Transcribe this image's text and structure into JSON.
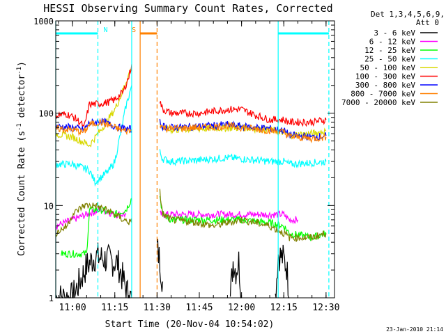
{
  "chart_data": {
    "type": "line",
    "title": "HESSI Observing Summary Count Rates, Corrected",
    "xlabel": "Start Time (20-Nov-04 10:54:02)",
    "ylabel": "Corrected Count Rate (s⁻¹ detector⁻¹)",
    "ylabel_main": "Corrected Count Rate (s",
    "ylabel_sup1": "-1",
    "ylabel_mid": " detector",
    "ylabel_sup2": "-1",
    "ylabel_end": ")",
    "footer": "23-Jan-2010 21:14",
    "y_scale": "log",
    "xlim": [
      "10:54:02",
      "12:33:00"
    ],
    "ylim": [
      1,
      1000
    ],
    "x_ticks": [
      "11:00",
      "11:15",
      "11:30",
      "11:45",
      "12:00",
      "12:15",
      "12:30"
    ],
    "y_ticks": [
      "1",
      "10",
      "100",
      "1000"
    ],
    "legend": {
      "header_line1": "Det 1,3,4,5,6,9,",
      "header_line2": "Att 0",
      "placement": "right"
    },
    "series": [
      {
        "name": "3 - 6 keV",
        "color": "#000000",
        "segments": [
          {
            "x": [
              "10:54",
              "11:00",
              "11:05",
              "11:08",
              "11:12",
              "11:16",
              "11:20",
              "11:21"
            ],
            "y": [
              1,
              1,
              2.2,
              2.8,
              2.6,
              2.4,
              1,
              1
            ]
          },
          {
            "x": [
              "11:30",
              "11:31",
              "11:32"
            ],
            "y": [
              3.5,
              2.5,
              1.5
            ]
          },
          {
            "x": [
              "11:56",
              "11:57",
              "11:58",
              "11:59",
              "12:00"
            ],
            "y": [
              1,
              2.5,
              2.0,
              2.5,
              1
            ]
          },
          {
            "x": [
              "12:12",
              "12:13",
              "12:15",
              "12:16",
              "12:17"
            ],
            "y": [
              1,
              3.0,
              2.6,
              2.2,
              1
            ]
          }
        ]
      },
      {
        "name": "6 - 12 keV",
        "color": "#ff00ff",
        "segments": [
          {
            "x": [
              "10:54",
              "11:00",
              "11:05",
              "11:10",
              "11:15",
              "11:19"
            ],
            "y": [
              6,
              7,
              8,
              9,
              8,
              8
            ]
          },
          {
            "x": [
              "11:31",
              "11:35",
              "11:45",
              "12:00",
              "12:10",
              "12:15",
              "12:17",
              "12:20"
            ],
            "y": [
              8,
              8,
              8,
              8,
              8,
              8,
              7,
              7
            ]
          }
        ]
      },
      {
        "name": "12 - 25 keV",
        "color": "#00ff00",
        "segments": [
          {
            "x": [
              "10:56",
              "10:57",
              "11:00",
              "11:05",
              "11:06",
              "11:10",
              "11:15",
              "11:19",
              "11:21"
            ],
            "y": [
              3,
              3,
              3,
              3,
              9,
              9,
              8,
              9,
              12
            ]
          },
          {
            "x": [
              "11:31",
              "11:32",
              "11:35",
              "11:45",
              "12:00",
              "12:10",
              "12:15",
              "12:17",
              "12:25",
              "12:30"
            ],
            "y": [
              13,
              8,
              7,
              7,
              7,
              6.5,
              6,
              5,
              4.5,
              5
            ]
          }
        ]
      },
      {
        "name": "25 - 50 keV",
        "color": "#00ffff",
        "segments": [
          {
            "x": [
              "10:54",
              "11:00",
              "11:03",
              "11:06",
              "11:08",
              "11:10",
              "11:13",
              "11:15",
              "11:17",
              "11:19",
              "11:21"
            ],
            "y": [
              28,
              28,
              26,
              24,
              18,
              20,
              24,
              30,
              60,
              120,
              200
            ]
          },
          {
            "x": [
              "11:31",
              "11:32",
              "11:35",
              "11:45",
              "11:50",
              "11:55",
              "12:00",
              "12:10",
              "12:15",
              "12:17",
              "12:25",
              "12:30"
            ],
            "y": [
              38,
              32,
              30,
              31,
              32,
              33,
              32,
              30,
              30,
              28,
              29,
              30
            ]
          }
        ]
      },
      {
        "name": "50 - 100 keV",
        "color": "#d8d800",
        "segments": [
          {
            "x": [
              "10:54",
              "11:00",
              "11:03",
              "11:06",
              "11:09",
              "11:12",
              "11:15",
              "11:17",
              "11:19",
              "11:21"
            ],
            "y": [
              60,
              55,
              50,
              45,
              60,
              80,
              110,
              150,
              220,
              320
            ]
          },
          {
            "x": [
              "11:31",
              "11:32",
              "11:35",
              "11:45",
              "12:00",
              "12:10",
              "12:15",
              "12:17",
              "12:25",
              "12:30"
            ],
            "y": [
              80,
              68,
              66,
              68,
              70,
              66,
              62,
              58,
              60,
              64
            ]
          }
        ]
      },
      {
        "name": "100 - 300 keV",
        "color": "#ff0000",
        "segments": [
          {
            "x": [
              "10:54",
              "10:58",
              "11:01",
              "11:03",
              "11:04",
              "11:06",
              "11:08",
              "11:12",
              "11:15",
              "11:18",
              "11:20",
              "11:21"
            ],
            "y": [
              95,
              98,
              88,
              78,
              68,
              125,
              125,
              130,
              140,
              170,
              250,
              340
            ]
          },
          {
            "x": [
              "11:31",
              "11:32",
              "11:35",
              "11:45",
              "11:50",
              "11:55",
              "12:00",
              "12:05",
              "12:10",
              "12:15",
              "12:17",
              "12:25",
              "12:30"
            ],
            "y": [
              135,
              110,
              100,
              100,
              105,
              110,
              110,
              95,
              85,
              85,
              80,
              80,
              85
            ]
          }
        ]
      },
      {
        "name": "300 - 800 keV",
        "color": "#0000ff",
        "segments": [
          {
            "x": [
              "10:54",
              "11:00",
              "11:04",
              "11:06",
              "11:10",
              "11:15",
              "11:18",
              "11:21"
            ],
            "y": [
              72,
              70,
              66,
              78,
              82,
              72,
              68,
              67
            ]
          },
          {
            "x": [
              "11:31",
              "11:32",
              "11:35",
              "11:45",
              "11:55",
              "12:00",
              "12:10",
              "12:15",
              "12:17",
              "12:25",
              "12:30"
            ],
            "y": [
              80,
              72,
              70,
              72,
              75,
              72,
              68,
              65,
              58,
              55,
              57
            ]
          }
        ]
      },
      {
        "name": "800 - 7000 keV",
        "color": "#ff8000",
        "segments": [
          {
            "x": [
              "10:54",
              "11:00",
              "11:04",
              "11:06",
              "11:10",
              "11:15",
              "11:18",
              "11:21"
            ],
            "y": [
              68,
              66,
              62,
              75,
              80,
              70,
              65,
              64
            ]
          },
          {
            "x": [
              "11:31",
              "11:32",
              "11:35",
              "11:45",
              "11:55",
              "12:00",
              "12:10",
              "12:15",
              "12:17",
              "12:25",
              "12:30"
            ],
            "y": [
              78,
              70,
              68,
              70,
              73,
              70,
              65,
              62,
              56,
              53,
              55
            ]
          }
        ]
      },
      {
        "name": "7000 - 20000 keV",
        "color": "#808000",
        "segments": [
          {
            "x": [
              "10:54",
              "10:58",
              "11:00",
              "11:04",
              "11:08",
              "11:12",
              "11:15",
              "11:18",
              "11:21"
            ],
            "y": [
              5,
              6,
              8,
              10,
              10,
              9,
              8,
              7,
              6.5
            ]
          },
          {
            "x": [
              "11:31",
              "11:32",
              "11:35",
              "11:45",
              "11:50",
              "11:55",
              "12:00",
              "12:05",
              "12:10",
              "12:15",
              "12:17",
              "12:25",
              "12:30"
            ],
            "y": [
              14,
              8,
              7,
              6.5,
              6,
              6.5,
              7,
              6.5,
              6,
              5,
              4.5,
              4.5,
              5
            ]
          }
        ]
      }
    ],
    "intervals": [
      {
        "label": "N",
        "color": "#00ffff",
        "x": [
          "11:09",
          "11:20"
        ]
      },
      {
        "label": "S",
        "color": "#ff8000",
        "x": [
          "11:24",
          "11:30"
        ]
      }
    ],
    "boundaries": [
      {
        "x": "10:54:02",
        "color": "#00ffff",
        "style": "solid"
      },
      {
        "x": "11:21",
        "color": "#00ffff",
        "style": "solid"
      },
      {
        "x": "11:09",
        "color": "#00ffff",
        "style": "dashed"
      },
      {
        "x": "11:24",
        "color": "#ff8000",
        "style": "solid"
      },
      {
        "x": "11:30",
        "color": "#ff8000",
        "style": "dashed"
      },
      {
        "x": "12:13",
        "color": "#00ffff",
        "style": "solid"
      },
      {
        "x": "12:31",
        "color": "#00ffff",
        "style": "dashed"
      }
    ],
    "top_bars": [
      {
        "x": [
          "10:54",
          "11:09"
        ],
        "color": "#00ffff"
      },
      {
        "x": [
          "11:24",
          "11:30"
        ],
        "color": "#ff8000"
      },
      {
        "x": [
          "12:13",
          "12:31"
        ],
        "color": "#00ffff"
      }
    ],
    "grid": false,
    "style": {
      "axis_color": "#000000",
      "background": "#ffffff"
    }
  }
}
